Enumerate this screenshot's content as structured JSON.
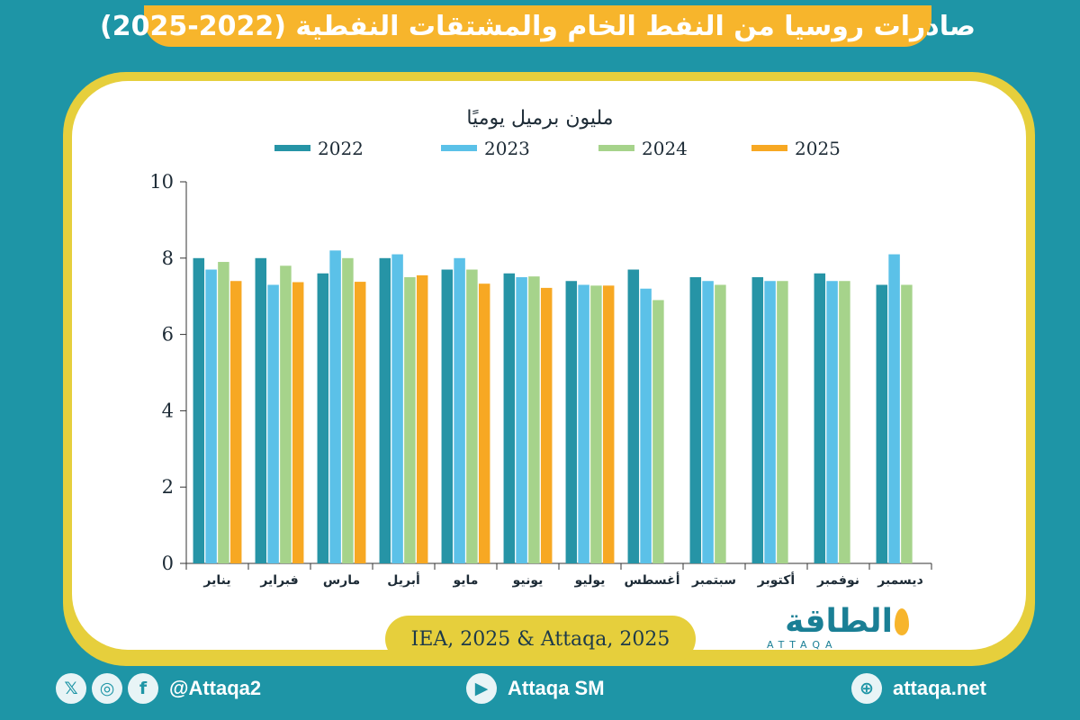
{
  "header": {
    "title": "صادرات روسيا من النفط الخام والمشتقات النفطية (2022-2025)"
  },
  "colors": {
    "background": "#1e95a6",
    "banner": "#f7b52c",
    "frame": "#e6cf3c",
    "series": [
      "#2694a6",
      "#5bc1e8",
      "#a6d38b",
      "#f7a823"
    ]
  },
  "chart_data": {
    "type": "bar",
    "title": "مليون برميل يوميًا",
    "categories": [
      "يناير",
      "فبراير",
      "مارس",
      "أبريل",
      "مايو",
      "يونيو",
      "يوليو",
      "أغسطس",
      "سبتمبر",
      "أكتوبر",
      "نوفمبر",
      "ديسمبر"
    ],
    "series": [
      {
        "name": "2022",
        "values": [
          8.0,
          8.0,
          7.6,
          8.0,
          7.7,
          7.6,
          7.4,
          7.7,
          7.5,
          7.5,
          7.6,
          7.3
        ]
      },
      {
        "name": "2023",
        "values": [
          7.7,
          7.3,
          8.2,
          8.1,
          8.0,
          7.5,
          7.3,
          7.2,
          7.4,
          7.4,
          7.4,
          8.1
        ]
      },
      {
        "name": "2024",
        "values": [
          7.9,
          7.8,
          8.0,
          7.5,
          7.7,
          7.52,
          7.28,
          6.9,
          7.3,
          7.4,
          7.4,
          7.3
        ]
      },
      {
        "name": "2025",
        "values": [
          7.4,
          7.37,
          7.38,
          7.55,
          7.33,
          7.22,
          7.28,
          null,
          null,
          null,
          null,
          null
        ]
      }
    ],
    "ylim": [
      0,
      10
    ],
    "yticks": [
      0,
      2,
      4,
      6,
      8,
      10
    ],
    "legend_position": "top",
    "grid": false
  },
  "source": {
    "text": "IEA, 2025 & Attaqa, 2025"
  },
  "logo": {
    "text": "الطاقة",
    "subtitle": "ATTAQA"
  },
  "footer": {
    "social_handle": "@Attaqa2",
    "youtube": "Attaqa SM",
    "website": "attaqa.net",
    "icons": [
      "x-icon",
      "instagram-icon",
      "facebook-icon",
      "youtube-icon",
      "globe-icon"
    ]
  }
}
